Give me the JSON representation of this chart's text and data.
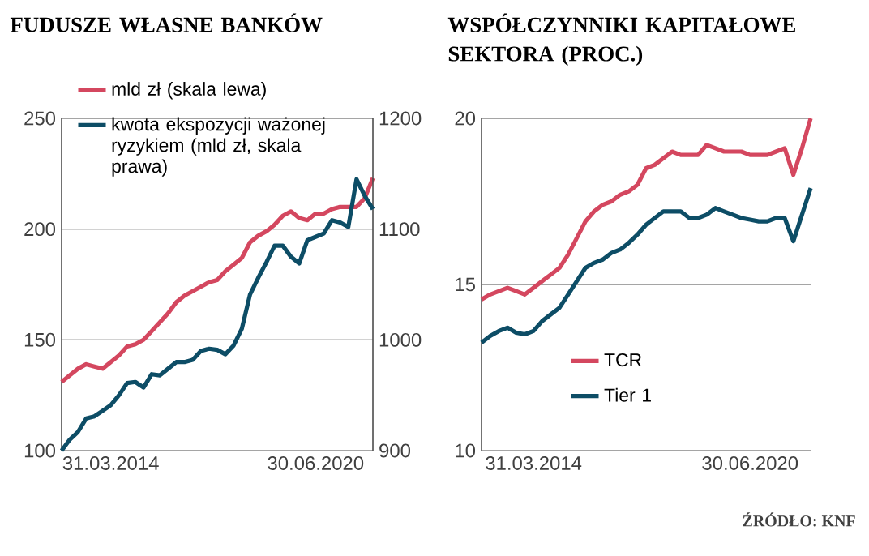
{
  "chart_data": [
    {
      "type": "line",
      "title": "FUDUSZE WŁASNE BANKÓW",
      "categories": [
        null,
        null,
        null,
        null,
        null,
        null,
        "31.03.2014",
        null,
        null,
        null,
        null,
        null,
        null,
        null,
        null,
        null,
        null,
        null,
        null,
        null,
        null,
        null,
        null,
        null,
        null,
        null,
        null,
        null,
        null,
        null,
        null,
        "30.06.2020",
        null,
        null,
        null,
        null,
        null,
        null,
        null
      ],
      "series": [
        {
          "name": "mld zł (skala lewa)",
          "color": "#d4475f",
          "values": [
            131,
            134,
            137,
            139,
            138,
            137,
            140,
            143,
            147,
            148,
            150,
            154,
            158,
            162,
            167,
            170,
            172,
            174,
            176,
            177,
            181,
            184,
            187,
            194,
            197,
            199,
            202,
            206,
            208,
            205,
            204,
            207,
            207,
            209,
            210,
            210,
            210,
            214,
            223
          ]
        },
        {
          "name": "kwota ekspozycji ważonej ryzykiem (mld zł, skala prawa)",
          "color": "#0d4d66",
          "axis": "y2",
          "values": [
            900,
            910,
            917,
            929,
            931,
            936,
            941,
            950,
            961,
            962,
            957,
            969,
            968,
            974,
            980,
            980,
            982,
            990,
            992,
            991,
            987,
            995,
            1010,
            1041,
            1056,
            1070,
            1085,
            1085,
            1075,
            1069,
            1090,
            1093,
            1096,
            1108,
            1106,
            1102,
            1145,
            1130,
            1118
          ]
        }
      ],
      "ylim": [
        100,
        250
      ],
      "yticks": [
        100,
        150,
        200,
        250
      ],
      "y2lim": [
        900,
        1200
      ],
      "y2ticks": [
        900,
        1000,
        1100,
        1200
      ],
      "grid": "y",
      "legend": "top left"
    },
    {
      "type": "line",
      "title": "WSPÓŁCZYNNIKI KAPITAŁOWE SEKTORA (PROC.)",
      "categories": [
        null,
        null,
        null,
        null,
        null,
        null,
        "31.03.2014",
        null,
        null,
        null,
        null,
        null,
        null,
        null,
        null,
        null,
        null,
        null,
        null,
        null,
        null,
        null,
        null,
        null,
        null,
        null,
        null,
        null,
        null,
        null,
        null,
        "30.06.2020",
        null,
        null,
        null,
        null,
        null,
        null,
        null
      ],
      "series": [
        {
          "name": "TCR",
          "color": "#d4475f",
          "values": [
            14.55,
            14.7,
            14.8,
            14.9,
            14.8,
            14.7,
            14.9,
            15.1,
            15.3,
            15.5,
            15.9,
            16.4,
            16.9,
            17.2,
            17.4,
            17.5,
            17.7,
            17.8,
            18.0,
            18.5,
            18.6,
            18.8,
            19.0,
            18.9,
            18.9,
            18.9,
            19.2,
            19.1,
            19.0,
            19.0,
            19.0,
            18.9,
            18.9,
            18.9,
            19.0,
            19.1,
            18.3,
            19.1,
            20.0
          ]
        },
        {
          "name": "Tier 1",
          "color": "#0d4d66",
          "values": [
            13.25,
            13.45,
            13.6,
            13.7,
            13.55,
            13.5,
            13.6,
            13.9,
            14.1,
            14.3,
            14.7,
            15.1,
            15.5,
            15.65,
            15.75,
            15.95,
            16.05,
            16.25,
            16.5,
            16.8,
            17.0,
            17.2,
            17.2,
            17.2,
            17.0,
            17.0,
            17.1,
            17.3,
            17.2,
            17.1,
            17.0,
            16.95,
            16.9,
            16.9,
            17.0,
            17.0,
            16.3,
            17.1,
            17.9
          ]
        }
      ],
      "ylim": [
        10,
        20
      ],
      "yticks": [
        10,
        15,
        20
      ],
      "grid": "y",
      "legend": "bottom left",
      "annotations": [
        "ŹRÓDŁO: KNF"
      ]
    }
  ]
}
